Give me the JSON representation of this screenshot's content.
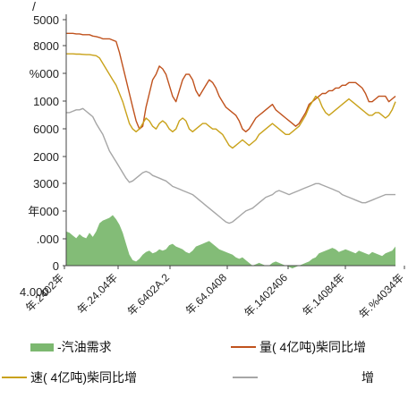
{
  "chart_data": {
    "type": "line",
    "stacked_on_area": true,
    "y_tick_labels": [
      "5000",
      "8000",
      "%000",
      "1000",
      "6000",
      "2000",
      "3000",
      "年000",
      ".000",
      "0"
    ],
    "y_top_label": "/",
    "x_tick_labels": [
      "4.000",
      "年.2402年",
      "年.24.04年",
      "年.6402A.2",
      "年.64.0408",
      "年.1402406",
      "年.14084年",
      "年.%4034年"
    ],
    "legend": [
      {
        "label": "-汽油需求",
        "kind": "area",
        "color": "#7cb870"
      },
      {
        "label": "量( 4亿吨)柴同比增",
        "kind": "line",
        "color": "#c0521d"
      },
      {
        "label": "速( 4亿吨)柴同比增",
        "kind": "line",
        "color": "#c9a21a"
      },
      {
        "label": "增",
        "kind": "line",
        "color": "#a6a6a6"
      }
    ],
    "ylim": [
      0,
      9
    ],
    "n_points": 100,
    "series": [
      {
        "legend_index": 0,
        "type": "area",
        "values": [
          1.25,
          1.2,
          1.1,
          1.0,
          1.15,
          1.05,
          1.0,
          1.2,
          1.05,
          1.25,
          1.55,
          1.65,
          1.7,
          1.75,
          1.85,
          1.7,
          1.5,
          1.2,
          0.8,
          0.4,
          0.2,
          0.15,
          0.25,
          0.4,
          0.5,
          0.55,
          0.45,
          0.5,
          0.6,
          0.55,
          0.6,
          0.75,
          0.8,
          0.7,
          0.65,
          0.6,
          0.5,
          0.45,
          0.55,
          0.7,
          0.75,
          0.8,
          0.85,
          0.9,
          0.8,
          0.7,
          0.6,
          0.55,
          0.5,
          0.45,
          0.4,
          0.3,
          0.25,
          0.3,
          0.2,
          0.1,
          0.0,
          0.05,
          0.1,
          0.05,
          0.0,
          0.0,
          0.1,
          0.15,
          0.1,
          0.05,
          0.0,
          -0.05,
          -0.1,
          -0.05,
          0.0,
          0.05,
          0.1,
          0.15,
          0.25,
          0.3,
          0.45,
          0.5,
          0.55,
          0.6,
          0.65,
          0.6,
          0.5,
          0.55,
          0.6,
          0.55,
          0.5,
          0.45,
          0.55,
          0.5,
          0.45,
          0.4,
          0.5,
          0.45,
          0.4,
          0.35,
          0.45,
          0.5,
          0.55,
          0.7
        ]
      },
      {
        "legend_index": 1,
        "type": "line",
        "values": [
          8.5,
          8.5,
          8.5,
          8.48,
          8.48,
          8.45,
          8.45,
          8.45,
          8.4,
          8.38,
          8.35,
          8.3,
          8.3,
          8.3,
          8.25,
          8.2,
          7.8,
          7.3,
          6.8,
          6.3,
          5.8,
          5.3,
          5.0,
          5.1,
          5.8,
          6.3,
          6.8,
          7.0,
          7.3,
          7.2,
          7.0,
          6.6,
          6.2,
          6.0,
          6.4,
          6.8,
          7.0,
          7.0,
          6.8,
          6.4,
          6.2,
          6.4,
          6.6,
          6.8,
          6.7,
          6.5,
          6.2,
          6.0,
          5.8,
          5.7,
          5.6,
          5.5,
          5.3,
          5.0,
          4.9,
          5.0,
          5.2,
          5.4,
          5.5,
          5.6,
          5.7,
          5.8,
          5.9,
          5.7,
          5.6,
          5.5,
          5.4,
          5.3,
          5.2,
          5.1,
          5.2,
          5.4,
          5.6,
          5.9,
          6.0,
          6.1,
          6.2,
          6.3,
          6.3,
          6.4,
          6.4,
          6.5,
          6.5,
          6.6,
          6.6,
          6.7,
          6.7,
          6.7,
          6.6,
          6.5,
          6.3,
          6.0,
          6.0,
          6.1,
          6.2,
          6.2,
          6.2,
          6.0,
          6.1,
          6.2
        ]
      },
      {
        "legend_index": 2,
        "type": "line",
        "values": [
          7.75,
          7.75,
          7.75,
          7.74,
          7.74,
          7.73,
          7.72,
          7.72,
          7.7,
          7.68,
          7.6,
          7.4,
          7.2,
          7.0,
          6.8,
          6.6,
          6.3,
          6.0,
          5.6,
          5.2,
          5.0,
          4.9,
          5.0,
          5.2,
          5.4,
          5.3,
          5.1,
          5.0,
          5.2,
          5.3,
          5.2,
          5.0,
          4.9,
          5.0,
          5.3,
          5.4,
          5.3,
          5.0,
          4.9,
          5.0,
          5.1,
          5.2,
          5.2,
          5.1,
          5.0,
          5.0,
          4.9,
          4.8,
          4.6,
          4.4,
          4.3,
          4.4,
          4.5,
          4.6,
          4.5,
          4.4,
          4.5,
          4.6,
          4.8,
          4.9,
          5.0,
          5.1,
          5.2,
          5.1,
          5.0,
          4.9,
          4.8,
          4.8,
          4.9,
          5.0,
          5.1,
          5.3,
          5.5,
          5.8,
          6.0,
          6.2,
          6.1,
          5.8,
          5.6,
          5.5,
          5.6,
          5.7,
          5.8,
          5.9,
          6.0,
          6.1,
          6.0,
          5.9,
          5.8,
          5.7,
          5.6,
          5.5,
          5.5,
          5.6,
          5.6,
          5.5,
          5.4,
          5.5,
          5.7,
          6.0
        ]
      },
      {
        "legend_index": 3,
        "type": "line",
        "values": [
          5.6,
          5.6,
          5.65,
          5.7,
          5.7,
          5.75,
          5.65,
          5.55,
          5.45,
          5.2,
          5.0,
          4.8,
          4.5,
          4.2,
          4.0,
          3.8,
          3.6,
          3.4,
          3.2,
          3.05,
          3.1,
          3.2,
          3.3,
          3.4,
          3.45,
          3.4,
          3.3,
          3.25,
          3.2,
          3.15,
          3.1,
          3.0,
          2.9,
          2.85,
          2.8,
          2.75,
          2.7,
          2.65,
          2.6,
          2.5,
          2.4,
          2.3,
          2.2,
          2.1,
          2.0,
          1.9,
          1.8,
          1.7,
          1.6,
          1.55,
          1.6,
          1.7,
          1.8,
          1.9,
          2.0,
          2.05,
          2.1,
          2.2,
          2.3,
          2.4,
          2.5,
          2.55,
          2.6,
          2.7,
          2.75,
          2.7,
          2.65,
          2.6,
          2.65,
          2.7,
          2.75,
          2.8,
          2.85,
          2.9,
          2.95,
          3.0,
          3.0,
          2.95,
          2.9,
          2.85,
          2.8,
          2.75,
          2.7,
          2.6,
          2.55,
          2.5,
          2.45,
          2.4,
          2.35,
          2.3,
          2.3,
          2.35,
          2.4,
          2.45,
          2.5,
          2.55,
          2.6,
          2.6,
          2.6,
          2.6
        ]
      }
    ]
  }
}
